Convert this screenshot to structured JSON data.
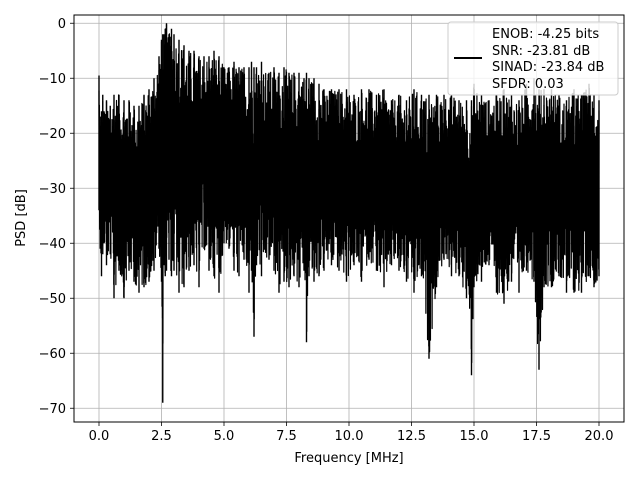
{
  "chart_data": {
    "type": "line",
    "xlabel": "Frequency [MHz]",
    "ylabel": "PSD [dB]",
    "xlim": [
      -1.0,
      21.0
    ],
    "ylim": [
      -72.5,
      1.5
    ],
    "x_ticks": [
      0.0,
      2.5,
      5.0,
      7.5,
      10.0,
      12.5,
      15.0,
      17.5,
      20.0
    ],
    "x_tick_labels": [
      "0.0",
      "2.5",
      "5.0",
      "7.5",
      "10.0",
      "12.5",
      "15.0",
      "17.5",
      "20.0"
    ],
    "y_ticks": [
      0,
      -10,
      -20,
      -30,
      -40,
      -50,
      -60,
      -70
    ],
    "y_tick_labels": [
      "0",
      "−10",
      "−20",
      "−30",
      "−40",
      "−50",
      "−60",
      "−70"
    ],
    "grid": true,
    "legend_position": "top-right",
    "legend_lines": [
      "ENOB: -4.25 bits",
      "SNR: -23.81 dB",
      "SINAD: -23.84 dB",
      "SFDR: 0.03"
    ],
    "line_color": "#000000",
    "series": [
      {
        "x": [
          0.0,
          0.05,
          0.1,
          0.15,
          0.2,
          0.3,
          0.45,
          0.6,
          0.8,
          1.0,
          1.2,
          1.4,
          1.6,
          1.8,
          2.0,
          2.2,
          2.4,
          2.5,
          2.55,
          2.6,
          2.65,
          2.7,
          2.8,
          2.9,
          3.0,
          3.2,
          3.4,
          3.6,
          3.8,
          4.0,
          4.2,
          4.4,
          4.6,
          4.8,
          5.0,
          5.2,
          5.4,
          5.6,
          5.8,
          6.0,
          6.1,
          6.2,
          6.3,
          6.5,
          6.8,
          7.0,
          7.2,
          7.4,
          7.6,
          7.8,
          8.0,
          8.2,
          8.3,
          8.4,
          8.6,
          8.8,
          9.0,
          9.3,
          9.6,
          9.9,
          10.2,
          10.5,
          10.8,
          11.1,
          11.4,
          11.7,
          12.0,
          12.3,
          12.6,
          12.9,
          13.2,
          13.5,
          13.8,
          14.1,
          14.4,
          14.7,
          14.9,
          15.0,
          15.3,
          15.6,
          15.9,
          16.2,
          16.5,
          16.8,
          17.1,
          17.4,
          17.6,
          17.8,
          18.1,
          18.4,
          18.7,
          19.0,
          19.3,
          19.6,
          19.8,
          20.0
        ],
        "y_max": [
          -9.5,
          -17,
          -16,
          -13,
          -16,
          -14,
          -15,
          -13,
          -13,
          -14,
          -14,
          -15,
          -15,
          -13,
          -12,
          -10,
          -6,
          -3,
          -2,
          -2,
          -1,
          0,
          -2,
          -1,
          -2,
          -3,
          -4,
          -5,
          -5,
          -6,
          -6,
          -6,
          -5,
          -6,
          -8,
          -8,
          -7,
          -8,
          -8,
          -8,
          -7,
          -8,
          -8,
          -7,
          -9,
          -8,
          -9,
          -8,
          -9,
          -9,
          -9,
          -10,
          -9,
          -10,
          -10,
          -11,
          -12,
          -12,
          -12,
          -12,
          -13,
          -12,
          -12,
          -13,
          -12,
          -14,
          -13,
          -14,
          -12,
          -13,
          -13,
          -13,
          -13,
          -13,
          -14,
          -14,
          -14,
          -11,
          -13,
          -14,
          -13,
          -12,
          -13,
          -14,
          -11,
          -10,
          -12,
          -12,
          -12,
          -13,
          -14,
          -12,
          -13,
          -11,
          -13,
          -14
        ],
        "y_min": [
          -34,
          -41,
          -46,
          -42,
          -40,
          -44,
          -42,
          -50,
          -45,
          -50,
          -45,
          -47,
          -49,
          -48,
          -47,
          -45,
          -41,
          -47,
          -69,
          -44,
          -46,
          -45,
          -43,
          -46,
          -45,
          -49,
          -48,
          -45,
          -44,
          -48,
          -41,
          -45,
          -46,
          -49,
          -40,
          -41,
          -45,
          -46,
          -43,
          -49,
          -45,
          -57,
          -44,
          -46,
          -43,
          -45,
          -49,
          -47,
          -48,
          -46,
          -48,
          -45,
          -58,
          -46,
          -47,
          -46,
          -45,
          -44,
          -45,
          -47,
          -44,
          -47,
          -43,
          -45,
          -48,
          -44,
          -45,
          -47,
          -49,
          -46,
          -61,
          -48,
          -43,
          -46,
          -46,
          -50,
          -64,
          -48,
          -47,
          -44,
          -49,
          -51,
          -47,
          -49,
          -45,
          -47,
          -63,
          -48,
          -48,
          -46,
          -49,
          -49,
          -49,
          -46,
          -48,
          -46
        ]
      }
    ]
  }
}
